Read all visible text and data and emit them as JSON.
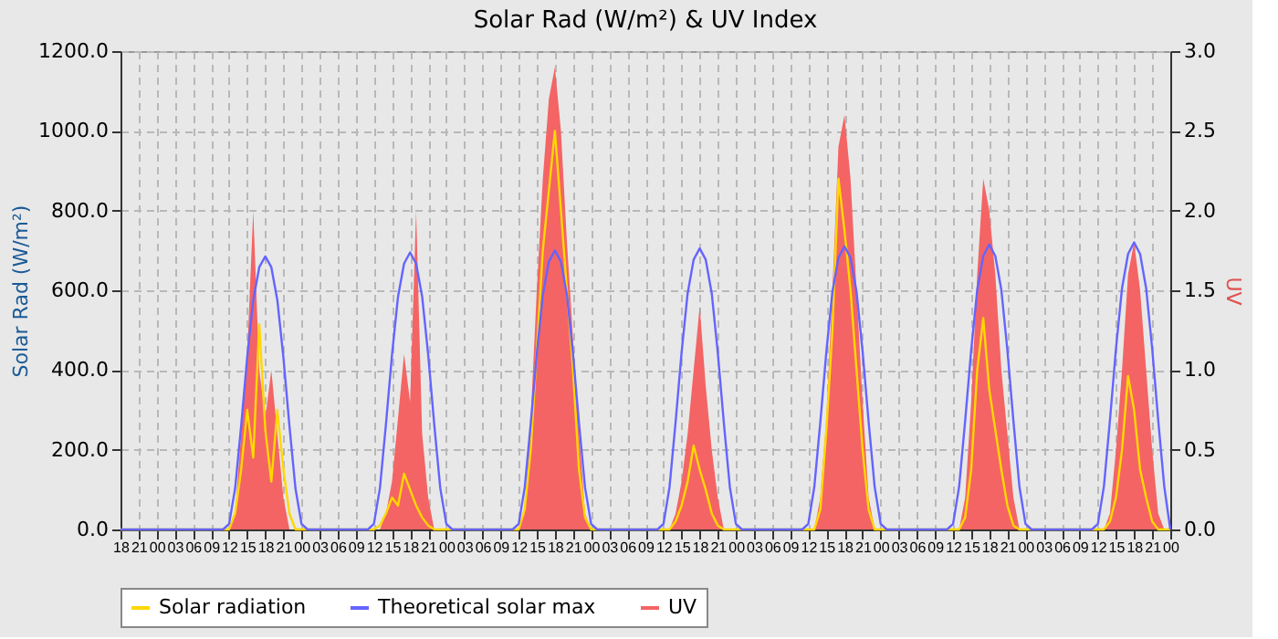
{
  "chart_data": {
    "type": "line",
    "title": "Solar Rad (W/m²) &  UV Index",
    "ylabel": "Solar Rad (W/m²)",
    "y2label": "UV",
    "x": [
      18,
      35,
      36,
      37,
      38,
      39,
      40,
      41,
      42,
      43,
      44,
      45,
      46,
      47,
      48,
      49,
      59,
      60,
      61,
      62,
      63,
      64,
      65,
      66,
      67,
      68,
      69,
      70,
      71,
      72,
      73,
      83,
      84,
      85,
      86,
      87,
      88,
      89,
      90,
      91,
      92,
      93,
      94,
      95,
      96,
      97,
      107,
      108,
      109,
      110,
      111,
      112,
      113,
      114,
      115,
      116,
      117,
      118,
      119,
      120,
      121,
      131,
      132,
      133,
      134,
      135,
      136,
      137,
      138,
      139,
      140,
      141,
      142,
      143,
      144,
      145,
      155,
      156,
      157,
      158,
      159,
      160,
      161,
      162,
      163,
      164,
      165,
      166,
      167,
      168,
      169,
      179,
      180,
      181,
      182,
      183,
      184,
      185,
      186,
      187,
      188,
      189,
      190,
      191,
      192
    ],
    "xlim": [
      18,
      192
    ],
    "xticks": [
      {
        "value": 18,
        "label": "18"
      },
      {
        "value": 21,
        "label": "21"
      },
      {
        "value": 24,
        "label": "00"
      },
      {
        "value": 27,
        "label": "03"
      },
      {
        "value": 30,
        "label": "06"
      },
      {
        "value": 33,
        "label": "09"
      },
      {
        "value": 36,
        "label": "12"
      },
      {
        "value": 39,
        "label": "15"
      },
      {
        "value": 42,
        "label": "18"
      },
      {
        "value": 45,
        "label": "21"
      },
      {
        "value": 48,
        "label": "00"
      },
      {
        "value": 51,
        "label": "03"
      },
      {
        "value": 54,
        "label": "06"
      },
      {
        "value": 57,
        "label": "09"
      },
      {
        "value": 60,
        "label": "12"
      },
      {
        "value": 63,
        "label": "15"
      },
      {
        "value": 66,
        "label": "18"
      },
      {
        "value": 69,
        "label": "21"
      },
      {
        "value": 72,
        "label": "00"
      },
      {
        "value": 75,
        "label": "03"
      },
      {
        "value": 78,
        "label": "06"
      },
      {
        "value": 81,
        "label": "09"
      },
      {
        "value": 84,
        "label": "12"
      },
      {
        "value": 87,
        "label": "15"
      },
      {
        "value": 90,
        "label": "18"
      },
      {
        "value": 93,
        "label": "21"
      },
      {
        "value": 96,
        "label": "00"
      },
      {
        "value": 99,
        "label": "03"
      },
      {
        "value": 102,
        "label": "06"
      },
      {
        "value": 105,
        "label": "09"
      },
      {
        "value": 108,
        "label": "12"
      },
      {
        "value": 111,
        "label": "15"
      },
      {
        "value": 114,
        "label": "18"
      },
      {
        "value": 117,
        "label": "21"
      },
      {
        "value": 120,
        "label": "00"
      },
      {
        "value": 123,
        "label": "03"
      },
      {
        "value": 126,
        "label": "06"
      },
      {
        "value": 129,
        "label": "09"
      },
      {
        "value": 132,
        "label": "12"
      },
      {
        "value": 135,
        "label": "15"
      },
      {
        "value": 138,
        "label": "18"
      },
      {
        "value": 141,
        "label": "21"
      },
      {
        "value": 144,
        "label": "00"
      },
      {
        "value": 147,
        "label": "03"
      },
      {
        "value": 150,
        "label": "06"
      },
      {
        "value": 153,
        "label": "09"
      },
      {
        "value": 156,
        "label": "12"
      },
      {
        "value": 159,
        "label": "15"
      },
      {
        "value": 162,
        "label": "18"
      },
      {
        "value": 165,
        "label": "21"
      },
      {
        "value": 168,
        "label": "00"
      },
      {
        "value": 171,
        "label": "03"
      },
      {
        "value": 174,
        "label": "06"
      },
      {
        "value": 177,
        "label": "09"
      },
      {
        "value": 180,
        "label": "12"
      },
      {
        "value": 183,
        "label": "15"
      },
      {
        "value": 186,
        "label": "18"
      },
      {
        "value": 189,
        "label": "21"
      },
      {
        "value": 192,
        "label": "00"
      }
    ],
    "ylim": [
      0,
      1200
    ],
    "yticks": [
      {
        "value": 0,
        "label": "0.0"
      },
      {
        "value": 200,
        "label": "200.0"
      },
      {
        "value": 400,
        "label": "400.0"
      },
      {
        "value": 600,
        "label": "600.0"
      },
      {
        "value": 800,
        "label": "800.0"
      },
      {
        "value": 1000,
        "label": "1000.0"
      },
      {
        "value": 1200,
        "label": "1200.0"
      }
    ],
    "y2lim": [
      0,
      3
    ],
    "y2ticks": [
      {
        "value": 0,
        "label": "0.0"
      },
      {
        "value": 0.5,
        "label": "0.5"
      },
      {
        "value": 1,
        "label": "1.0"
      },
      {
        "value": 1.5,
        "label": "1.5"
      },
      {
        "value": 2,
        "label": "2.0"
      },
      {
        "value": 2.5,
        "label": "2.5"
      },
      {
        "value": 3,
        "label": "3.0"
      }
    ],
    "grid": true,
    "legend": "bottom",
    "line_style": "solid",
    "series": [
      {
        "name": "Solar radiation",
        "color": "#ffd700",
        "values": [
          0,
          0,
          0,
          40,
          150,
          300,
          180,
          515,
          250,
          120,
          300,
          150,
          40,
          0,
          0,
          0,
          0,
          0,
          10,
          40,
          80,
          60,
          140,
          100,
          60,
          30,
          10,
          0,
          0,
          0,
          0,
          0,
          0,
          50,
          200,
          450,
          700,
          850,
          1000,
          800,
          600,
          400,
          150,
          30,
          0,
          0,
          0,
          0,
          0,
          20,
          60,
          120,
          210,
          150,
          100,
          40,
          10,
          0,
          0,
          0,
          0,
          0,
          0,
          0,
          50,
          250,
          500,
          880,
          750,
          600,
          400,
          200,
          50,
          0,
          0,
          0,
          0,
          0,
          0,
          30,
          150,
          400,
          530,
          350,
          250,
          150,
          60,
          10,
          0,
          0,
          0,
          0,
          0,
          0,
          20,
          80,
          200,
          385,
          300,
          150,
          80,
          20,
          0,
          0,
          0
        ]
      },
      {
        "name": "Theoretical solar max",
        "color": "#6464ff",
        "values": [
          0,
          0,
          14,
          103,
          260,
          432,
          575,
          658,
          685,
          658,
          575,
          432,
          260,
          103,
          14,
          0,
          0,
          14,
          104,
          264,
          438,
          584,
          667,
          695,
          667,
          584,
          438,
          264,
          104,
          14,
          0,
          0,
          14,
          105,
          266,
          441,
          588,
          672,
          700,
          672,
          588,
          441,
          266,
          105,
          14,
          0,
          0,
          14,
          106,
          268,
          444,
          592,
          677,
          705,
          677,
          592,
          444,
          268,
          106,
          14,
          0,
          0,
          14,
          107,
          270,
          447,
          596,
          682,
          710,
          682,
          596,
          447,
          270,
          107,
          14,
          0,
          0,
          14,
          107,
          272,
          450,
          601,
          686,
          715,
          686,
          601,
          450,
          272,
          107,
          14,
          0,
          0,
          14,
          108,
          274,
          454,
          605,
          691,
          720,
          691,
          605,
          454,
          274,
          108,
          0
        ]
      },
      {
        "name": "UV",
        "color": "#f46464",
        "type": "area",
        "axis": "y2",
        "values": [
          0,
          0,
          0,
          0.1,
          0.6,
          1.1,
          2.0,
          1.0,
          0.7,
          1.0,
          0.6,
          0.2,
          0,
          0,
          0,
          0,
          0,
          0,
          0,
          0.1,
          0.3,
          0.7,
          1.1,
          0.8,
          2.0,
          0.6,
          0.2,
          0,
          0,
          0,
          0,
          0,
          0,
          0.1,
          0.7,
          1.5,
          2.2,
          2.7,
          2.9,
          2.5,
          1.8,
          1.2,
          0.6,
          0.1,
          0,
          0,
          0,
          0,
          0,
          0.1,
          0.3,
          0.6,
          1.0,
          1.4,
          0.9,
          0.5,
          0.2,
          0,
          0,
          0,
          0,
          0,
          0,
          0,
          0.2,
          0.7,
          1.5,
          2.4,
          2.6,
          2.2,
          1.5,
          0.8,
          0.2,
          0,
          0,
          0,
          0,
          0,
          0,
          0.2,
          0.8,
          1.6,
          2.2,
          2.0,
          1.6,
          1.0,
          0.6,
          0.2,
          0,
          0,
          0,
          0,
          0,
          0,
          0.1,
          0.5,
          1.0,
          1.6,
          1.8,
          1.5,
          1.0,
          0.5,
          0.1,
          0,
          0
        ]
      }
    ]
  }
}
